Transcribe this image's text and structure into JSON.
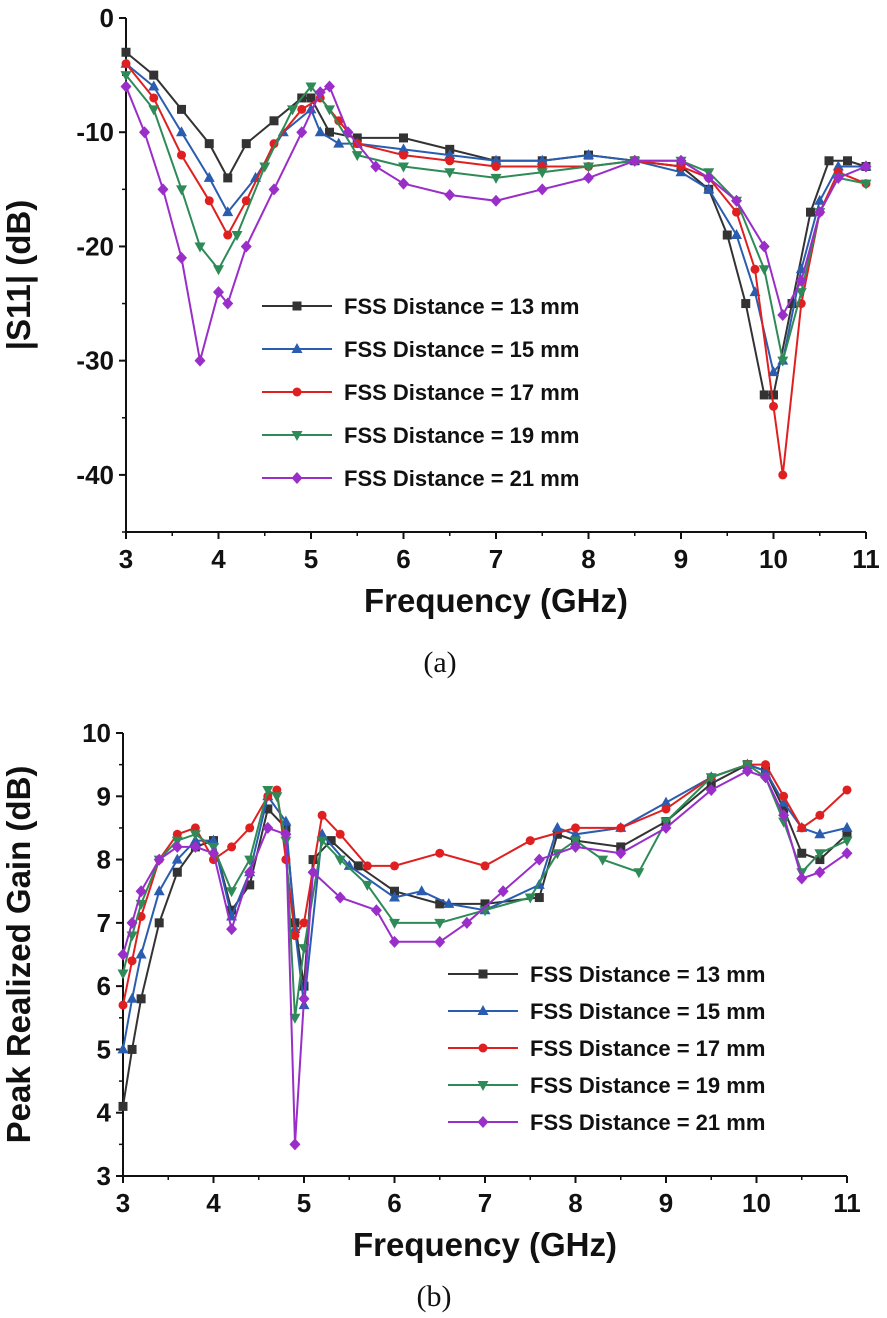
{
  "chart_data": [
    {
      "type": "line",
      "caption": "(a)",
      "xlabel": "Frequency (GHz)",
      "ylabel": "|S11| (dB)",
      "xlim": [
        3,
        11
      ],
      "ylim": [
        -45,
        0
      ],
      "xticks": [
        3,
        4,
        5,
        6,
        7,
        8,
        9,
        10,
        11
      ],
      "yticks": [
        0,
        -10,
        -20,
        -30,
        -40
      ],
      "legend": "center-right",
      "series": [
        {
          "name": "FSS Distance = 13 mm",
          "color": "#333333",
          "marker": "square",
          "x": [
            3,
            3.3,
            3.6,
            3.9,
            4.1,
            4.3,
            4.6,
            4.9,
            5.0,
            5.2,
            5.5,
            6.0,
            6.5,
            7.0,
            7.5,
            8.0,
            8.5,
            9.0,
            9.3,
            9.5,
            9.7,
            9.9,
            10.0,
            10.2,
            10.4,
            10.6,
            10.8,
            11.0
          ],
          "y": [
            -3,
            -5,
            -8,
            -11,
            -14,
            -11,
            -9,
            -7,
            -7,
            -10,
            -10.5,
            -10.5,
            -11.5,
            -12.5,
            -12.5,
            -12,
            -12.5,
            -13,
            -15,
            -19,
            -25,
            -33,
            -33,
            -25,
            -17,
            -12.5,
            -12.5,
            -13
          ]
        },
        {
          "name": "FSS Distance = 15 mm",
          "color": "#2a5db0",
          "marker": "triangle-up",
          "x": [
            3,
            3.3,
            3.6,
            3.9,
            4.1,
            4.4,
            4.7,
            5.0,
            5.1,
            5.3,
            5.5,
            6.0,
            6.5,
            7.0,
            7.5,
            8.0,
            8.5,
            9.0,
            9.3,
            9.6,
            9.8,
            10.0,
            10.1,
            10.3,
            10.5,
            10.7,
            11.0
          ],
          "y": [
            -4,
            -6,
            -10,
            -14,
            -17,
            -14,
            -10,
            -8,
            -10,
            -11,
            -11,
            -11.5,
            -12,
            -12.5,
            -12.5,
            -12,
            -12.5,
            -13.5,
            -15,
            -19,
            -24,
            -31,
            -30,
            -22,
            -16,
            -13,
            -13
          ]
        },
        {
          "name": "FSS Distance = 17 mm",
          "color": "#e02020",
          "marker": "circle",
          "x": [
            3,
            3.3,
            3.6,
            3.9,
            4.1,
            4.3,
            4.6,
            4.9,
            5.1,
            5.3,
            5.5,
            6.0,
            6.5,
            7.0,
            7.5,
            8.0,
            8.5,
            9.0,
            9.3,
            9.6,
            9.8,
            10.0,
            10.1,
            10.3,
            10.5,
            10.7,
            11.0
          ],
          "y": [
            -4,
            -7,
            -12,
            -16,
            -19,
            -16,
            -11,
            -8,
            -7,
            -9,
            -11,
            -12,
            -12.5,
            -13,
            -13,
            -13,
            -12.5,
            -13,
            -14,
            -17,
            -22,
            -34,
            -40,
            -25,
            -17,
            -13.5,
            -14.5
          ]
        },
        {
          "name": "FSS Distance = 19 mm",
          "color": "#2e8b57",
          "marker": "triangle-down",
          "x": [
            3,
            3.3,
            3.6,
            3.8,
            4.0,
            4.2,
            4.5,
            4.8,
            5.0,
            5.2,
            5.5,
            6.0,
            6.5,
            7.0,
            7.5,
            8.0,
            8.5,
            9.0,
            9.3,
            9.6,
            9.9,
            10.1,
            10.3,
            10.5,
            10.7,
            11.0
          ],
          "y": [
            -5,
            -8,
            -15,
            -20,
            -22,
            -19,
            -13,
            -8,
            -6,
            -8,
            -12,
            -13,
            -13.5,
            -14,
            -13.5,
            -13,
            -12.5,
            -12.5,
            -13.5,
            -16,
            -22,
            -30,
            -24,
            -17,
            -14,
            -14.5
          ]
        },
        {
          "name": "FSS Distance = 21 mm",
          "color": "#9a2ec8",
          "marker": "diamond",
          "x": [
            3,
            3.2,
            3.4,
            3.6,
            3.8,
            4.0,
            4.1,
            4.3,
            4.6,
            4.9,
            5.1,
            5.2,
            5.4,
            5.7,
            6.0,
            6.5,
            7.0,
            7.5,
            8.0,
            8.5,
            9.0,
            9.3,
            9.6,
            9.9,
            10.1,
            10.3,
            10.5,
            10.7,
            11.0
          ],
          "y": [
            -6,
            -10,
            -15,
            -21,
            -30,
            -24,
            -25,
            -20,
            -15,
            -10,
            -6.5,
            -6,
            -10,
            -13,
            -14.5,
            -15.5,
            -16,
            -15,
            -14,
            -12.5,
            -12.5,
            -14,
            -16,
            -20,
            -26,
            -23,
            -17,
            -14,
            -13
          ]
        }
      ]
    },
    {
      "type": "line",
      "caption": "(b)",
      "xlabel": "Frequency (GHz)",
      "ylabel": "Peak Realized Gain (dB)",
      "xlim": [
        3,
        11
      ],
      "ylim": [
        3,
        10
      ],
      "xticks": [
        3,
        4,
        5,
        6,
        7,
        8,
        9,
        10,
        11
      ],
      "yticks": [
        3,
        4,
        5,
        6,
        7,
        8,
        9,
        10
      ],
      "legend": "lower-right",
      "series": [
        {
          "name": "FSS Distance = 13 mm",
          "color": "#333333",
          "marker": "square",
          "x": [
            3,
            3.1,
            3.2,
            3.4,
            3.6,
            3.8,
            4.0,
            4.2,
            4.4,
            4.6,
            4.8,
            4.9,
            5.0,
            5.1,
            5.3,
            5.6,
            6.0,
            6.5,
            7.0,
            7.6,
            7.8,
            8.0,
            8.5,
            9.0,
            9.5,
            9.9,
            10.1,
            10.3,
            10.5,
            10.7,
            11.0
          ],
          "y": [
            4.1,
            5.0,
            5.8,
            7.0,
            7.8,
            8.2,
            8.3,
            7.2,
            7.6,
            8.8,
            8.5,
            7.0,
            6.0,
            8.0,
            8.3,
            7.9,
            7.5,
            7.3,
            7.3,
            7.4,
            8.4,
            8.3,
            8.2,
            8.6,
            9.2,
            9.5,
            9.4,
            8.8,
            8.1,
            8.0,
            8.4
          ]
        },
        {
          "name": "FSS Distance = 15 mm",
          "color": "#2a5db0",
          "marker": "triangle-up",
          "x": [
            3,
            3.1,
            3.2,
            3.4,
            3.6,
            3.8,
            4.0,
            4.2,
            4.4,
            4.6,
            4.8,
            4.9,
            5.0,
            5.2,
            5.5,
            6.0,
            6.3,
            6.6,
            7.0,
            7.6,
            7.8,
            8.0,
            8.5,
            9.0,
            9.5,
            9.9,
            10.1,
            10.3,
            10.5,
            10.7,
            11.0
          ],
          "y": [
            5.0,
            5.8,
            6.5,
            7.5,
            8.0,
            8.3,
            8.3,
            7.1,
            7.8,
            9.0,
            8.6,
            6.9,
            5.7,
            8.4,
            7.9,
            7.4,
            7.5,
            7.3,
            7.2,
            7.6,
            8.5,
            8.4,
            8.5,
            8.9,
            9.3,
            9.5,
            9.4,
            8.9,
            8.5,
            8.4,
            8.5
          ]
        },
        {
          "name": "FSS Distance = 17 mm",
          "color": "#e02020",
          "marker": "circle",
          "x": [
            3,
            3.1,
            3.2,
            3.4,
            3.6,
            3.8,
            4.0,
            4.2,
            4.4,
            4.6,
            4.7,
            4.8,
            4.9,
            5.0,
            5.2,
            5.4,
            5.7,
            6.0,
            6.5,
            7.0,
            7.5,
            8.0,
            8.5,
            9.0,
            9.5,
            9.9,
            10.1,
            10.3,
            10.5,
            10.7,
            11.0
          ],
          "y": [
            5.7,
            6.4,
            7.1,
            8.0,
            8.4,
            8.5,
            8.0,
            8.2,
            8.5,
            9.0,
            9.1,
            8.0,
            6.8,
            7.0,
            8.7,
            8.4,
            7.9,
            7.9,
            8.1,
            7.9,
            8.3,
            8.5,
            8.5,
            8.8,
            9.3,
            9.5,
            9.5,
            9.0,
            8.5,
            8.7,
            9.1
          ]
        },
        {
          "name": "FSS Distance = 19 mm",
          "color": "#2e8b57",
          "marker": "triangle-down",
          "x": [
            3,
            3.1,
            3.2,
            3.4,
            3.6,
            3.8,
            4.0,
            4.2,
            4.4,
            4.6,
            4.7,
            4.8,
            4.9,
            5.0,
            5.2,
            5.4,
            5.7,
            6.0,
            6.5,
            7.0,
            7.5,
            7.8,
            8.0,
            8.3,
            8.7,
            9.0,
            9.5,
            9.9,
            10.1,
            10.3,
            10.5,
            10.7,
            11.0
          ],
          "y": [
            6.2,
            6.8,
            7.3,
            8.0,
            8.3,
            8.4,
            8.2,
            7.5,
            8.0,
            9.1,
            9.0,
            8.3,
            5.5,
            6.6,
            8.3,
            8.0,
            7.6,
            7.0,
            7.0,
            7.2,
            7.4,
            8.1,
            8.3,
            8.0,
            7.8,
            8.6,
            9.3,
            9.5,
            9.3,
            8.6,
            7.8,
            8.1,
            8.3
          ]
        },
        {
          "name": "FSS Distance = 21 mm",
          "color": "#9a2ec8",
          "marker": "diamond",
          "x": [
            3,
            3.1,
            3.2,
            3.4,
            3.6,
            3.8,
            4.0,
            4.2,
            4.4,
            4.6,
            4.8,
            4.9,
            5.0,
            5.1,
            5.4,
            5.8,
            6.0,
            6.5,
            6.8,
            7.2,
            7.6,
            8.0,
            8.5,
            9.0,
            9.5,
            9.9,
            10.1,
            10.3,
            10.5,
            10.7,
            11.0
          ],
          "y": [
            6.5,
            7.0,
            7.5,
            8.0,
            8.2,
            8.2,
            8.1,
            6.9,
            7.8,
            8.5,
            8.4,
            3.5,
            5.8,
            7.8,
            7.4,
            7.2,
            6.7,
            6.7,
            7.0,
            7.5,
            8.0,
            8.2,
            8.1,
            8.5,
            9.1,
            9.4,
            9.3,
            8.7,
            7.7,
            7.8,
            8.1
          ]
        }
      ]
    }
  ]
}
